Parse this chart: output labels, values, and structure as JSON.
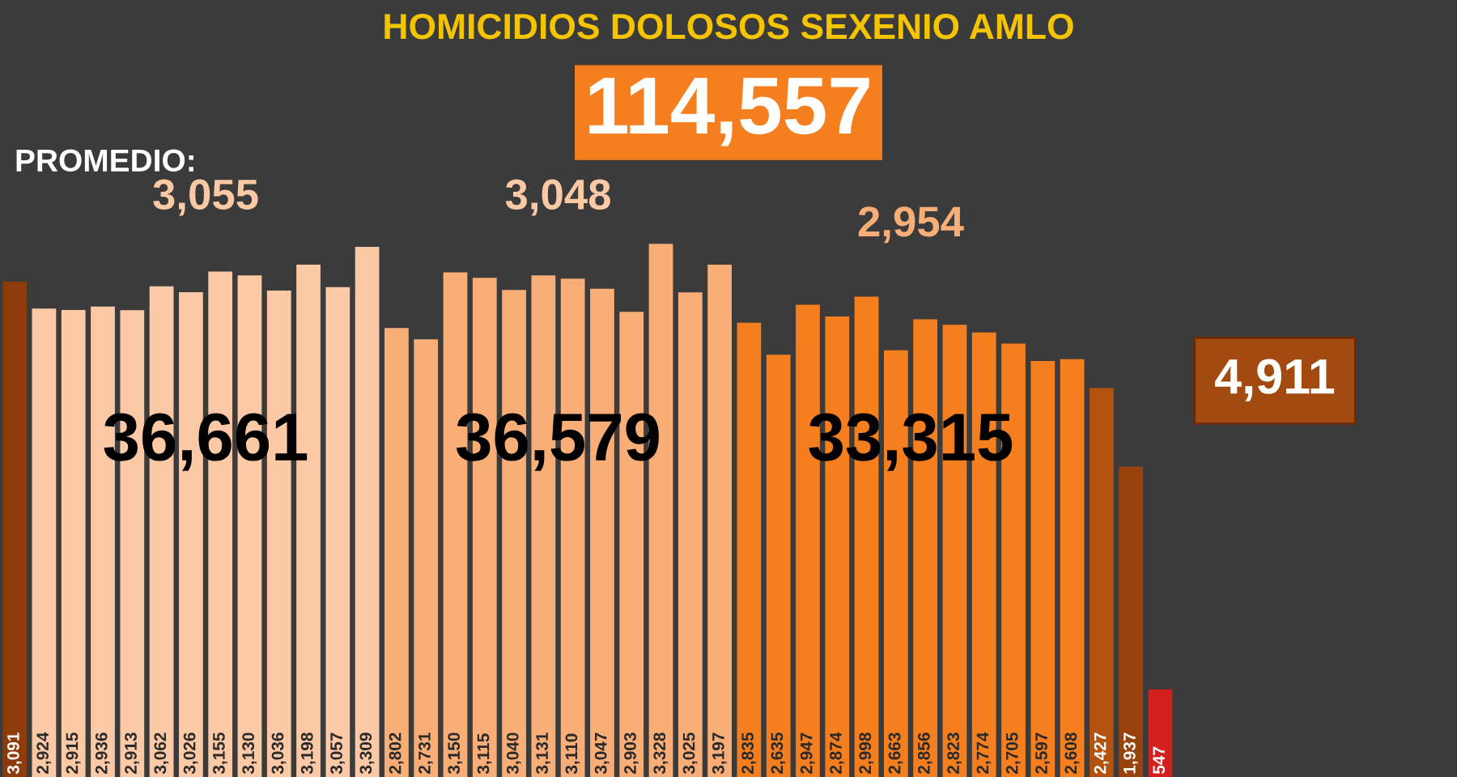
{
  "chart_data": {
    "type": "bar",
    "title": "HOMICIDIOS DOLOSOS SEXENIO AMLO",
    "subtitle": "114,557",
    "categories": [
      null,
      null,
      null,
      null,
      null,
      null,
      null,
      null,
      null,
      null,
      null,
      null,
      null,
      null,
      null,
      null,
      null,
      null,
      null,
      null,
      null,
      null,
      null,
      null,
      null,
      null,
      null,
      null,
      null,
      null,
      null,
      null,
      null,
      null,
      null,
      null,
      null,
      null,
      null,
      null
    ],
    "values": [
      3091,
      2924,
      2915,
      2936,
      2913,
      3062,
      3026,
      3155,
      3130,
      3036,
      3198,
      3057,
      3309,
      2802,
      2731,
      3150,
      3115,
      3040,
      3131,
      3110,
      3047,
      2903,
      3328,
      3025,
      3197,
      2835,
      2635,
      2947,
      2874,
      2998,
      2663,
      2856,
      2823,
      2774,
      2705,
      2597,
      2608,
      2427,
      1937,
      547
    ],
    "value_labels": [
      "3,091",
      "2,924",
      "2,915",
      "2,936",
      "2,913",
      "3,062",
      "3,026",
      "3,155",
      "3,130",
      "3,036",
      "3,198",
      "3,057",
      "3,309",
      "2,802",
      "2,731",
      "3,150",
      "3,115",
      "3,040",
      "3,131",
      "3,110",
      "3,047",
      "2,903",
      "3,328",
      "3,025",
      "3,197",
      "2,835",
      "2,635",
      "2,947",
      "2,874",
      "2,998",
      "2,663",
      "2,856",
      "2,823",
      "2,774",
      "2,705",
      "2,597",
      "2,608",
      "2,427",
      "1,937",
      "547"
    ],
    "colors": [
      "#8e3b0c",
      "#fcc9a6",
      "#fcc9a6",
      "#fcc9a6",
      "#fcc9a6",
      "#fcc9a6",
      "#fcc9a6",
      "#fcc9a6",
      "#fcc9a6",
      "#fcc9a6",
      "#fcc9a6",
      "#fcc9a6",
      "#fcc9a6",
      "#f9ae78",
      "#f9ae78",
      "#f9ae78",
      "#f9ae78",
      "#f9ae78",
      "#f9ae78",
      "#f9ae78",
      "#f9ae78",
      "#f9ae78",
      "#f9ae78",
      "#f9ae78",
      "#f9ae78",
      "#f57f1f",
      "#f57f1f",
      "#f57f1f",
      "#f57f1f",
      "#f57f1f",
      "#f57f1f",
      "#f57f1f",
      "#f57f1f",
      "#f57f1f",
      "#f57f1f",
      "#f57f1f",
      "#f57f1f",
      "#b4520f",
      "#9a420c",
      "#d3201e"
    ],
    "annotations": [
      "PROMEDIO:",
      "3,055",
      "3,048",
      "2,954",
      "36,661",
      "36,579",
      "33,315",
      "4,911"
    ],
    "grid": false,
    "legend": false
  }
}
